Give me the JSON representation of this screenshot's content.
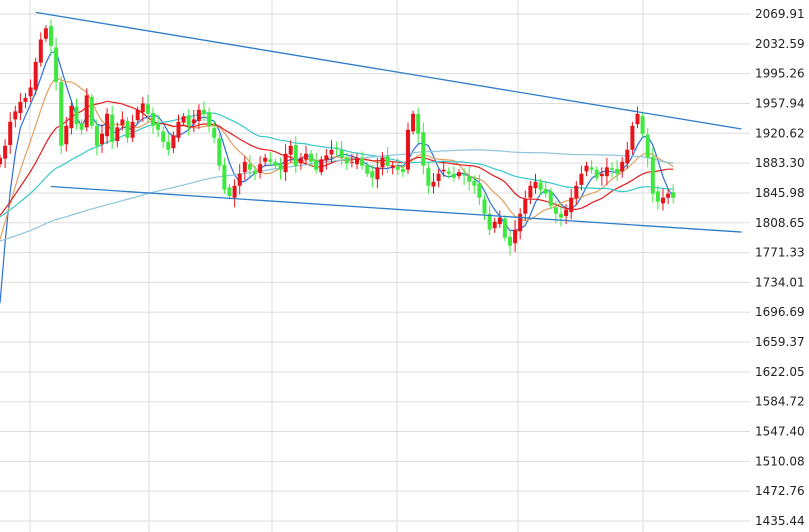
{
  "chart_data": {
    "type": "candlestick",
    "ylim": [
      1435.44,
      2069.91
    ],
    "y_ticks": [
      "2069.91",
      "2032.59",
      "1995.26",
      "1957.94",
      "1920.62",
      "1883.30",
      "1845.98",
      "1808.65",
      "1771.33",
      "1734.01",
      "1696.69",
      "1659.37",
      "1622.05",
      "1584.72",
      "1547.40",
      "1510.08",
      "1472.76",
      "1435.44"
    ],
    "grid": true,
    "colors": {
      "up": "#e8141c",
      "down": "#3ee83e",
      "ma_short": "#2c6ed8",
      "ma_mid": "#e0a060",
      "ma_long": "#e11d1d",
      "ma_longer": "#37c8c8",
      "ma_longest": "#8fc4dc",
      "trendline": "#2d7dc8",
      "grid": "#dddddd"
    },
    "trendlines": [
      {
        "from": {
          "index": 7,
          "value": 2072
        },
        "to": {
          "index": 136,
          "value": 1926
        }
      },
      {
        "from": {
          "index": 10,
          "value": 1854
        },
        "to": {
          "index": 136,
          "value": 1797
        }
      }
    ],
    "series_close": [
      1890,
      1905,
      1935,
      1948,
      1960,
      1965,
      1978,
      2010,
      2038,
      2052,
      2030,
      1985,
      1905,
      1930,
      1955,
      1932,
      1925,
      1968,
      1930,
      1905,
      1920,
      1945,
      1910,
      1928,
      1938,
      1915,
      1935,
      1950,
      1958,
      1945,
      1930,
      1925,
      1910,
      1900,
      1918,
      1935,
      1942,
      1930,
      1938,
      1950,
      1945,
      1930,
      1915,
      1880,
      1850,
      1842,
      1855,
      1870,
      1885,
      1875,
      1870,
      1882,
      1890,
      1885,
      1880,
      1875,
      1895,
      1905,
      1880,
      1890,
      1895,
      1885,
      1875,
      1888,
      1893,
      1900,
      1902,
      1890,
      1883,
      1885,
      1890,
      1880,
      1870,
      1865,
      1878,
      1890,
      1880,
      1880,
      1875,
      1872,
      1925,
      1945,
      1920,
      1880,
      1855,
      1860,
      1870,
      1875,
      1870,
      1865,
      1872,
      1868,
      1860,
      1855,
      1840,
      1820,
      1800,
      1810,
      1815,
      1790,
      1780,
      1800,
      1820,
      1838,
      1855,
      1860,
      1850,
      1845,
      1830,
      1820,
      1815,
      1825,
      1840,
      1855,
      1870,
      1880,
      1875,
      1865,
      1870,
      1878,
      1875,
      1870,
      1885,
      1900,
      1930,
      1945,
      1920,
      1890,
      1845,
      1835,
      1840,
      1845,
      1840
    ]
  }
}
